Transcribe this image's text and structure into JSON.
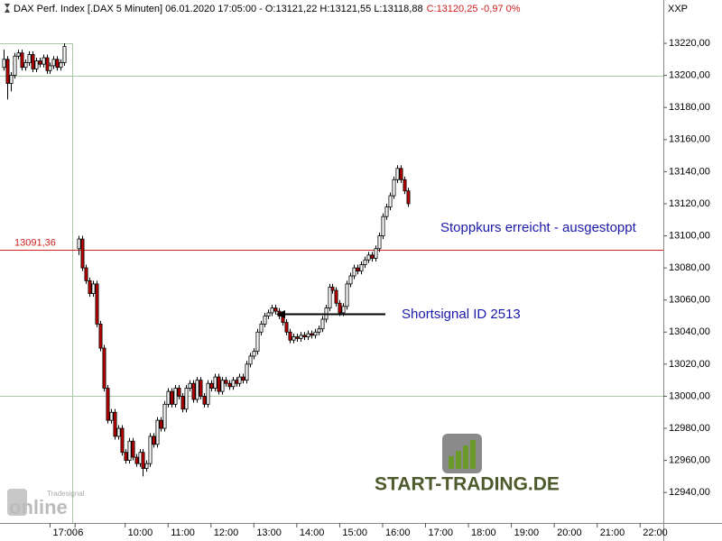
{
  "chart_data": {
    "type": "candlestick",
    "title": "DAX Perf. Index [.DAX  5 Minuten] 06.01.2020 17:05:00 - O:13121,22 H:13121,55 L:13118,88",
    "title_change": "C:13120,25 -0,97 0%",
    "axis_corner_label": "XXP",
    "up_color": "#ffffff",
    "down_color": "#c00000",
    "ylim": [
      12921,
      13247
    ],
    "yticks": [
      {
        "value": 12940,
        "label": "12940,00"
      },
      {
        "value": 12960,
        "label": "12960,00"
      },
      {
        "value": 12980,
        "label": "12980,00"
      },
      {
        "value": 13000,
        "label": "13000,00"
      },
      {
        "value": 13020,
        "label": "13020,00"
      },
      {
        "value": 13040,
        "label": "13040,00"
      },
      {
        "value": 13060,
        "label": "13060,00"
      },
      {
        "value": 13080,
        "label": "13080,00"
      },
      {
        "value": 13100,
        "label": "13100,00"
      },
      {
        "value": 13120,
        "label": "13120,00"
      },
      {
        "value": 13140,
        "label": "13140,00"
      },
      {
        "value": 13160,
        "label": "13160,00"
      },
      {
        "value": 13180,
        "label": "13180,00"
      },
      {
        "value": 13200,
        "label": "13200,00"
      },
      {
        "value": 13220,
        "label": "13220,00"
      }
    ],
    "grid_values": [
      13000,
      13200
    ],
    "xlim": [
      0,
      185.5
    ],
    "xticks": [
      {
        "value": 14,
        "label": "17:00"
      },
      {
        "value": 21,
        "label": "6"
      },
      {
        "value": 35,
        "label": "10:00"
      },
      {
        "value": 47,
        "label": "11:00"
      },
      {
        "value": 59,
        "label": "12:00"
      },
      {
        "value": 71,
        "label": "13:00"
      },
      {
        "value": 83,
        "label": "14:00"
      },
      {
        "value": 95,
        "label": "15:00"
      },
      {
        "value": 107,
        "label": "16:00"
      },
      {
        "value": 119,
        "label": "17:00"
      },
      {
        "value": 131,
        "label": "18:00"
      },
      {
        "value": 143,
        "label": "19:00"
      },
      {
        "value": 155,
        "label": "20:00"
      },
      {
        "value": 167,
        "label": "21:00"
      },
      {
        "value": 179,
        "label": "22:00"
      }
    ],
    "reference_line": {
      "value": 13091.36,
      "label": "13091,36",
      "color": "#d02020"
    },
    "annotations": [
      "Stoppkurs erreicht - ausgestoppt",
      "Shortsignal ID 2513"
    ],
    "watermark": "START-TRADING.DE",
    "logo_top": "Tradesignal",
    "logo_main": "online",
    "x": [
      1,
      2,
      3,
      4,
      5,
      6,
      7,
      8,
      9,
      10,
      11,
      12,
      13,
      14,
      15,
      16,
      17,
      18,
      22,
      23,
      24,
      25,
      26,
      27,
      28,
      29,
      30,
      31,
      32,
      33,
      34,
      35,
      36,
      37,
      38,
      39,
      40,
      41,
      42,
      43,
      44,
      45,
      46,
      47,
      48,
      49,
      50,
      51,
      52,
      53,
      54,
      55,
      56,
      57,
      58,
      59,
      60,
      61,
      62,
      63,
      64,
      65,
      66,
      67,
      68,
      69,
      70,
      71,
      72,
      73,
      74,
      75,
      76,
      77,
      78,
      79,
      80,
      81,
      82,
      83,
      84,
      85,
      86,
      87,
      88,
      89,
      90,
      91,
      92,
      93,
      94,
      95,
      96,
      97,
      98,
      99,
      100,
      101,
      102,
      103,
      104,
      105,
      106,
      107,
      108,
      109,
      110,
      111,
      112,
      113,
      114
    ],
    "candles": [
      [
        13205,
        13216,
        13203,
        13210
      ],
      [
        13210,
        13212,
        13185,
        13195
      ],
      [
        13195,
        13202,
        13190,
        13200
      ],
      [
        13200,
        13214,
        13198,
        13212
      ],
      [
        13212,
        13216,
        13210,
        13214
      ],
      [
        13214,
        13216,
        13203,
        13205
      ],
      [
        13205,
        13210,
        13203,
        13208
      ],
      [
        13208,
        13215,
        13206,
        13213
      ],
      [
        13213,
        13215,
        13202,
        13204
      ],
      [
        13204,
        13211,
        13202,
        13209
      ],
      [
        13209,
        13211,
        13205,
        13207
      ],
      [
        13207,
        13213,
        13205,
        13211
      ],
      [
        13211,
        13213,
        13201,
        13203
      ],
      [
        13203,
        13208,
        13201,
        13206
      ],
      [
        13206,
        13212,
        13204,
        13210
      ],
      [
        13210,
        13212,
        13203,
        13205
      ],
      [
        13205,
        13210,
        13203,
        13208
      ],
      [
        13208,
        13220,
        13206,
        13218
      ],
      [
        13092,
        13100,
        13088,
        13098
      ],
      [
        13098,
        13100,
        13078,
        13080
      ],
      [
        13080,
        13082,
        13070,
        13072
      ],
      [
        13072,
        13074,
        13062,
        13064
      ],
      [
        13064,
        13072,
        13062,
        13070
      ],
      [
        13070,
        13072,
        13043,
        13045
      ],
      [
        13045,
        13047,
        13028,
        13030
      ],
      [
        13030,
        13032,
        13003,
        13005
      ],
      [
        13005,
        13007,
        12983,
        12985
      ],
      [
        12985,
        12992,
        12983,
        12990
      ],
      [
        12990,
        12992,
        12973,
        12975
      ],
      [
        12975,
        12982,
        12973,
        12980
      ],
      [
        12980,
        12982,
        12963,
        12965
      ],
      [
        12965,
        12967,
        12958,
        12960
      ],
      [
        12960,
        12974,
        12958,
        12972
      ],
      [
        12972,
        12974,
        12960,
        12962
      ],
      [
        12962,
        12964,
        12956,
        12958
      ],
      [
        12958,
        12967,
        12956,
        12965
      ],
      [
        12965,
        12967,
        12950,
        12955
      ],
      [
        12955,
        12960,
        12953,
        12958
      ],
      [
        12958,
        12977,
        12956,
        12975
      ],
      [
        12975,
        12977,
        12968,
        12970
      ],
      [
        12970,
        12987,
        12968,
        12985
      ],
      [
        12985,
        12987,
        12978,
        12980
      ],
      [
        12980,
        12997,
        12978,
        12995
      ],
      [
        12995,
        13005,
        12993,
        13003
      ],
      [
        13003,
        13005,
        12993,
        12995
      ],
      [
        12995,
        13007,
        12993,
        13005
      ],
      [
        13005,
        13007,
        12998,
        13000
      ],
      [
        13000,
        13002,
        12990,
        12992
      ],
      [
        12992,
        13007,
        12990,
        13005
      ],
      [
        13005,
        13010,
        13003,
        13008
      ],
      [
        13008,
        13010,
        12996,
        12998
      ],
      [
        12998,
        13012,
        12996,
        13010
      ],
      [
        13010,
        13012,
        12998,
        13000
      ],
      [
        13000,
        13002,
        12993,
        12995
      ],
      [
        12995,
        13010,
        12993,
        13008
      ],
      [
        13008,
        13010,
        13003,
        13005
      ],
      [
        13005,
        13014,
        13003,
        13012
      ],
      [
        13012,
        13014,
        13001,
        13003
      ],
      [
        13003,
        13012,
        13001,
        13010
      ],
      [
        13010,
        13012,
        13006,
        13008
      ],
      [
        13008,
        13010,
        13004,
        13006
      ],
      [
        13006,
        13012,
        13004,
        13010
      ],
      [
        13010,
        13012,
        13006,
        13008
      ],
      [
        13008,
        13014,
        13006,
        13012
      ],
      [
        13012,
        13014,
        13008,
        13010
      ],
      [
        13010,
        13022,
        13008,
        13020
      ],
      [
        13020,
        13027,
        13018,
        13025
      ],
      [
        13025,
        13030,
        13023,
        13028
      ],
      [
        13028,
        13042,
        13026,
        13040
      ],
      [
        13040,
        13047,
        13038,
        13045
      ],
      [
        13045,
        13052,
        13043,
        13050
      ],
      [
        13050,
        13054,
        13048,
        13052
      ],
      [
        13052,
        13057,
        13050,
        13055
      ],
      [
        13055,
        13057,
        13051,
        13053
      ],
      [
        13053,
        13055,
        13048,
        13050
      ],
      [
        13050,
        13052,
        13044,
        13046
      ],
      [
        13046,
        13048,
        13038,
        13040
      ],
      [
        13040,
        13042,
        13033,
        13035
      ],
      [
        13035,
        13039,
        13033,
        13037
      ],
      [
        13037,
        13039,
        13034,
        13036
      ],
      [
        13036,
        13040,
        13034,
        13038
      ],
      [
        13038,
        13040,
        13035,
        13037
      ],
      [
        13037,
        13041,
        13035,
        13039
      ],
      [
        13039,
        13041,
        13036,
        13038
      ],
      [
        13038,
        13042,
        13036,
        13040
      ],
      [
        13040,
        13044,
        13038,
        13042
      ],
      [
        13042,
        13050,
        13040,
        13048
      ],
      [
        13048,
        13057,
        13046,
        13055
      ],
      [
        13055,
        13070,
        13053,
        13068
      ],
      [
        13068,
        13070,
        13064,
        13066
      ],
      [
        13066,
        13068,
        13056,
        13058
      ],
      [
        13058,
        13060,
        13050,
        13052
      ],
      [
        13052,
        13058,
        13050,
        13056
      ],
      [
        13056,
        13072,
        13054,
        13070
      ],
      [
        13070,
        13077,
        13068,
        13075
      ],
      [
        13075,
        13082,
        13073,
        13080
      ],
      [
        13080,
        13082,
        13076,
        13078
      ],
      [
        13078,
        13084,
        13076,
        13082
      ],
      [
        13082,
        13087,
        13080,
        13085
      ],
      [
        13085,
        13090,
        13083,
        13088
      ],
      [
        13088,
        13090,
        13084,
        13086
      ],
      [
        13086,
        13094,
        13084,
        13092
      ],
      [
        13092,
        13102,
        13090,
        13100
      ],
      [
        13100,
        13114,
        13098,
        13112
      ],
      [
        13112,
        13120,
        13110,
        13118
      ],
      [
        13118,
        13127,
        13116,
        13125
      ],
      [
        13125,
        13137,
        13123,
        13135
      ],
      [
        13135,
        13144,
        13133,
        13142
      ],
      [
        13142,
        13144,
        13133,
        13135
      ],
      [
        13135,
        13137,
        13126,
        13128
      ],
      [
        13128,
        13130,
        13118,
        13120
      ]
    ]
  }
}
